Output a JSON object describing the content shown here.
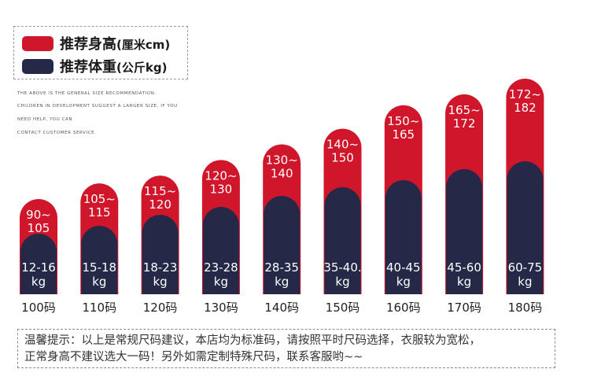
{
  "legend": {
    "height_label": "推荐身高",
    "height_unit": "(厘米cm)",
    "weight_label": "推荐体重",
    "weight_unit": "(公斤kg)"
  },
  "notes": [
    "THE ABOVE IS THE GENERAL SIZE RECOMMENDATION.",
    "CHILDREN IN DEVELOPMENT SUGGEST A LARGER SIZE, IF YOU",
    "NEED HELP, YOU CAN",
    "CONTACT CUSTOMER SERVICE."
  ],
  "colors": {
    "height": "#d0162a",
    "weight": "#262847"
  },
  "chart_data": {
    "type": "bar",
    "categories": [
      "100码",
      "110码",
      "120码",
      "130码",
      "140码",
      "150码",
      "160码",
      "170码",
      "180码"
    ],
    "series": [
      {
        "name": "推荐身高(厘米cm)",
        "ranges": [
          [
            90,
            105
          ],
          [
            105,
            115
          ],
          [
            115,
            120
          ],
          [
            120,
            130
          ],
          [
            130,
            140
          ],
          [
            140,
            150
          ],
          [
            150,
            165
          ],
          [
            165,
            172
          ],
          [
            172,
            182
          ]
        ],
        "labels": [
          [
            "90~",
            "105"
          ],
          [
            "105~",
            "115"
          ],
          [
            "115~",
            "120"
          ],
          [
            "120~",
            "130"
          ],
          [
            "130~",
            "140"
          ],
          [
            "140~",
            "150"
          ],
          [
            "150~",
            "165"
          ],
          [
            "165~",
            "172"
          ],
          [
            "172~",
            "182"
          ]
        ]
      },
      {
        "name": "推荐体重(公斤kg)",
        "ranges": [
          [
            12,
            16
          ],
          [
            15,
            18
          ],
          [
            18,
            23
          ],
          [
            23,
            28
          ],
          [
            28,
            35
          ],
          [
            35,
            40
          ],
          [
            40,
            45
          ],
          [
            45,
            60
          ],
          [
            60,
            75
          ]
        ],
        "labels": [
          [
            "12-16",
            "kg"
          ],
          [
            "15-18",
            "kg"
          ],
          [
            "18-23",
            "kg"
          ],
          [
            "23-28",
            "kg"
          ],
          [
            "28-35",
            "kg"
          ],
          [
            "35-40.",
            "kg"
          ],
          [
            "40-45",
            "kg"
          ],
          [
            "45-60",
            "kg"
          ],
          [
            "60-75",
            "kg"
          ]
        ]
      }
    ]
  },
  "footer": {
    "line1": "温馨提示：以上是常规尺码建议，本店均为标准码，请按照平时尺码选择，衣服较为宽松，",
    "line2": "正常身高不建议选大一码！另外如需定制特殊尺码，联系客服哟~~"
  }
}
